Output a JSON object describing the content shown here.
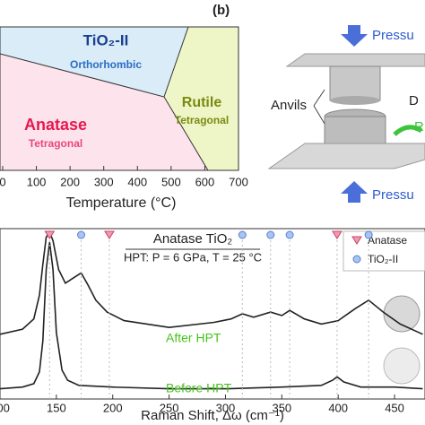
{
  "panel_a": {
    "regions": [
      {
        "name": "TiO₂-II",
        "subtitle": "Orthorhombic"
      },
      {
        "name": "Rutile",
        "subtitle": "Tetragonal"
      },
      {
        "name": "Anatase",
        "subtitle": "Tetragonal"
      }
    ],
    "x_axis_label": "Temperature (°C)",
    "xlim": [
      0,
      700
    ],
    "xticks": [
      0,
      100,
      200,
      300,
      400,
      500,
      600,
      700
    ]
  },
  "panel_b": {
    "label": "(b)",
    "pressure_top": "Pressu",
    "anvils": "Anvils",
    "disk": "D",
    "rotation": "R",
    "pressure_bottom": "Pressu"
  },
  "chart_data": {
    "type": "line",
    "title": "Anatase TiO₂",
    "subtitle": "HPT: P = 6 GPa, T = 25 °C",
    "x_label": "Raman Shift, Δω (cm⁻¹)",
    "xlim": [
      100,
      477
    ],
    "ylim": [
      0,
      100
    ],
    "xticks": [
      100,
      150,
      200,
      250,
      300,
      350,
      400,
      450
    ],
    "legend": [
      "Anatase",
      "TiO₂-II"
    ],
    "anatase_peaks": [
      144,
      197,
      399
    ],
    "tio2_ii_peaks": [
      172,
      315,
      340,
      357,
      427
    ],
    "series": [
      {
        "name": "After HPT",
        "color": "#222222",
        "label_color": "#46c21e",
        "x": [
          100,
          120,
          130,
          135,
          138,
          141,
          144,
          147,
          152,
          158,
          165,
          172,
          178,
          185,
          195,
          210,
          250,
          290,
          305,
          315,
          325,
          340,
          350,
          357,
          370,
          385,
          400,
          415,
          427,
          440,
          455,
          475
        ],
        "values": [
          38,
          41,
          47,
          61,
          79,
          95,
          98,
          93,
          76,
          68,
          71,
          74,
          67,
          58,
          51,
          46,
          42,
          45,
          47,
          50,
          48,
          51,
          49,
          52,
          47,
          44,
          46,
          53,
          58,
          51,
          44,
          38
        ]
      },
      {
        "name": "Before HPT",
        "color": "#222222",
        "label_color": "#46c21e",
        "x": [
          100,
          120,
          130,
          135,
          138,
          141,
          144,
          147,
          150,
          155,
          160,
          170,
          200,
          250,
          300,
          350,
          385,
          395,
          399,
          405,
          420,
          450,
          475
        ],
        "values": [
          6,
          7,
          9,
          16,
          34,
          76,
          92,
          76,
          39,
          17,
          11,
          8,
          7,
          6,
          6,
          7,
          8,
          11,
          13,
          10,
          7,
          7,
          6
        ]
      }
    ]
  }
}
